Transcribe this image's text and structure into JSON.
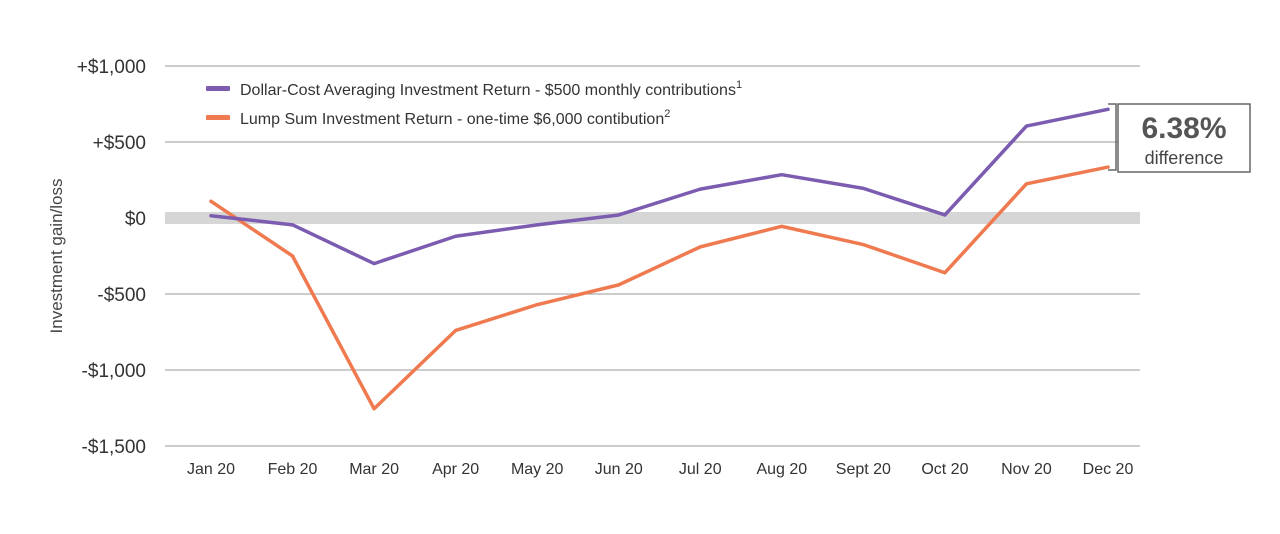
{
  "chart_data": {
    "type": "line",
    "title": "",
    "xlabel": "",
    "ylabel": "Investment gain/loss",
    "categories": [
      "Jan 20",
      "Feb 20",
      "Mar 20",
      "Apr 20",
      "May 20",
      "Jun 20",
      "Jul 20",
      "Aug 20",
      "Sept 20",
      "Oct 20",
      "Nov 20",
      "Dec 20"
    ],
    "ylim": [
      -1500,
      1000
    ],
    "yticks": [
      1000,
      500,
      0,
      -500,
      -1000,
      -1500
    ],
    "ytick_labels": [
      "+$1,000",
      "+$500",
      "$0",
      "-$500",
      "-$1,000",
      "-$1,500"
    ],
    "grid": true,
    "legend_position": "top-left",
    "series": [
      {
        "name": "Dollar-Cost Averaging Investment Return - $500 monthly contributions",
        "footnote": "1",
        "color": "#7B5CB0",
        "values": [
          15,
          -45,
          -300,
          -120,
          -45,
          20,
          190,
          285,
          195,
          20,
          605,
          715
        ]
      },
      {
        "name": "Lump Sum Investment Return - one-time $6,000 contibution",
        "footnote": "2",
        "color": "#F07A50",
        "values": [
          110,
          -250,
          -1255,
          -740,
          -570,
          -440,
          -190,
          -55,
          -175,
          -360,
          225,
          335
        ]
      }
    ],
    "zero_band_color": "#D6D6D6",
    "annotation": {
      "value": "6.38%",
      "label": "difference"
    }
  }
}
